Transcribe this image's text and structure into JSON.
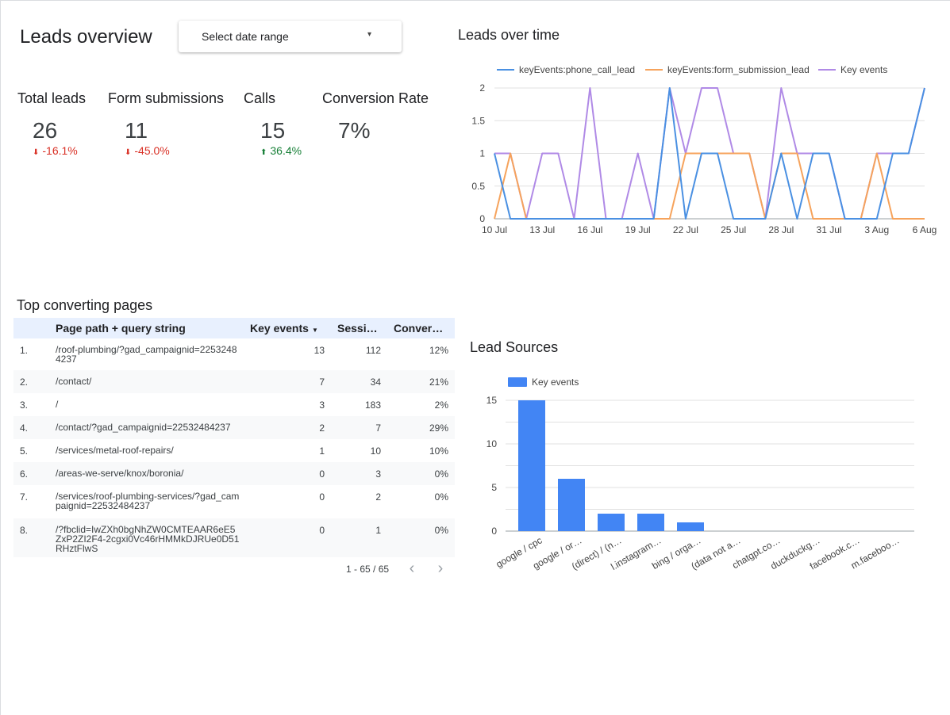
{
  "header": {
    "title": "Leads overview",
    "date_range": {
      "label": "Select date range",
      "caret": "▾"
    }
  },
  "kpis": [
    {
      "label": "Total leads",
      "value": "26",
      "delta": "-16.1%",
      "direction": "down"
    },
    {
      "label": "Form submissions",
      "value": "11",
      "delta": "-45.0%",
      "direction": "down"
    },
    {
      "label": "Calls",
      "value": "15",
      "delta": "36.4%",
      "direction": "up"
    },
    {
      "label": "Conversion Rate",
      "value": "7%",
      "delta": "",
      "direction": "none"
    }
  ],
  "colors": {
    "phone": "#4a90e2",
    "form": "#f6a35c",
    "key": "#b08ae6",
    "bar": "#4285f4",
    "down": "#d93025",
    "up": "#188038"
  },
  "chart_data": [
    {
      "type": "line",
      "title": "Leads over time",
      "x_ticks": [
        "10 Jul",
        "13 Jul",
        "16 Jul",
        "19 Jul",
        "22 Jul",
        "25 Jul",
        "28 Jul",
        "31 Jul",
        "3 Aug",
        "6 Aug"
      ],
      "y_ticks": [
        "0",
        "0.5",
        "1",
        "1.5",
        "2"
      ],
      "ylim": [
        0,
        2
      ],
      "x": [
        "10 Jul",
        "11 Jul",
        "12 Jul",
        "13 Jul",
        "14 Jul",
        "15 Jul",
        "16 Jul",
        "17 Jul",
        "18 Jul",
        "19 Jul",
        "20 Jul",
        "21 Jul",
        "22 Jul",
        "23 Jul",
        "24 Jul",
        "25 Jul",
        "26 Jul",
        "27 Jul",
        "28 Jul",
        "29 Jul",
        "30 Jul",
        "31 Jul",
        "1 Aug",
        "2 Aug",
        "3 Aug",
        "4 Aug",
        "5 Aug",
        "6 Aug"
      ],
      "legend_position": "top",
      "grid": true,
      "series": [
        {
          "name": "keyEvents:phone_call_lead",
          "color_key": "phone",
          "values": [
            1,
            0,
            0,
            0,
            0,
            0,
            0,
            0,
            0,
            0,
            0,
            2,
            0,
            1,
            1,
            0,
            0,
            0,
            1,
            0,
            1,
            1,
            0,
            0,
            0,
            1,
            1,
            2
          ]
        },
        {
          "name": "keyEvents:form_submission_lead",
          "color_key": "form",
          "values": [
            0,
            1,
            0,
            0,
            0,
            0,
            0,
            0,
            0,
            0,
            0,
            0,
            1,
            1,
            1,
            1,
            1,
            0,
            1,
            1,
            0,
            0,
            0,
            0,
            1,
            0,
            0,
            0
          ]
        },
        {
          "name": "Key events",
          "color_key": "key",
          "values": [
            1,
            1,
            0,
            1,
            1,
            0,
            2,
            0,
            0,
            1,
            0,
            2,
            1,
            2,
            2,
            1,
            1,
            0,
            2,
            1,
            1,
            1,
            0,
            0,
            1,
            1,
            1,
            2
          ]
        }
      ]
    },
    {
      "type": "bar",
      "title": "Lead Sources",
      "categories": [
        "google / cpc",
        "google / or…",
        "(direct) / (n…",
        "l.instagram…",
        "bing / orga…",
        "(data not a…",
        "chatgpt.co…",
        "duckduckg…",
        "facebook.c…",
        "m.faceboo…"
      ],
      "series": [
        {
          "name": "Key events",
          "color_key": "bar",
          "values": [
            15,
            6,
            2,
            2,
            1,
            0,
            0,
            0,
            0,
            0
          ]
        }
      ],
      "y_ticks": [
        "0",
        "5",
        "10",
        "15"
      ],
      "ylim": [
        0,
        16
      ],
      "legend_position": "top-left",
      "grid": true
    }
  ],
  "table": {
    "title": "Top converting pages",
    "columns": [
      "Page path + query string",
      "Key events",
      "Sessi…",
      "Conver…"
    ],
    "sort_indicator": "▼",
    "rows": [
      {
        "n": "1.",
        "path": "/roof-plumbing/?gad_campaignid=22532484237",
        "key": "13",
        "sessions": "112",
        "conv": "12%"
      },
      {
        "n": "2.",
        "path": "/contact/",
        "key": "7",
        "sessions": "34",
        "conv": "21%"
      },
      {
        "n": "3.",
        "path": "/",
        "key": "3",
        "sessions": "183",
        "conv": "2%"
      },
      {
        "n": "4.",
        "path": "/contact/?gad_campaignid=22532484237",
        "key": "2",
        "sessions": "7",
        "conv": "29%"
      },
      {
        "n": "5.",
        "path": "/services/metal-roof-repairs/",
        "key": "1",
        "sessions": "10",
        "conv": "10%"
      },
      {
        "n": "6.",
        "path": "/areas-we-serve/knox/boronia/",
        "key": "0",
        "sessions": "3",
        "conv": "0%"
      },
      {
        "n": "7.",
        "path": "/services/roof-plumbing-services/?gad_campaignid=22532484237",
        "key": "0",
        "sessions": "2",
        "conv": "0%"
      },
      {
        "n": "8.",
        "path": "/?fbclid=IwZXh0bgNhZW0CMTEAAR6eE5ZxP2ZI2F4-2cgxi0Vc46rHMMkDJRUe0D51RHztFlwS",
        "key": "0",
        "sessions": "1",
        "conv": "0%"
      }
    ],
    "pager": {
      "range": "1 - 65 / 65",
      "prev": "‹",
      "next": "›"
    }
  }
}
